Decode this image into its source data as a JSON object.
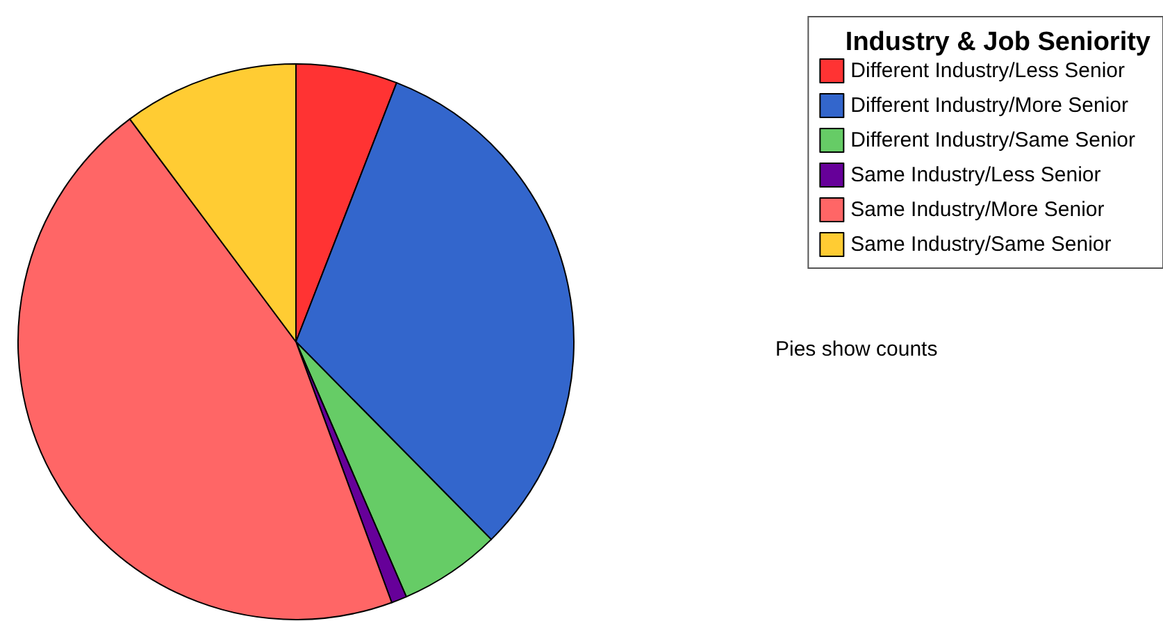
{
  "chart_data": {
    "type": "pie",
    "legend_title": "Industry & Job Seniority",
    "categories": [
      "Different Industry/Less Senior",
      "Different Industry/More Senior",
      "Different Industry/Same Senior",
      "Same Industry/Less Senior",
      "Same Industry/More Senior",
      "Same Industry/Same Senior"
    ],
    "values": [
      5.9,
      31.7,
      5.9,
      0.9,
      45.4,
      10.2
    ],
    "colors": [
      "#ff3333",
      "#3366cc",
      "#66cc66",
      "#660099",
      "#ff6666",
      "#ffcc33"
    ],
    "legend": "top right",
    "annotations": [
      "Pies show counts"
    ]
  }
}
